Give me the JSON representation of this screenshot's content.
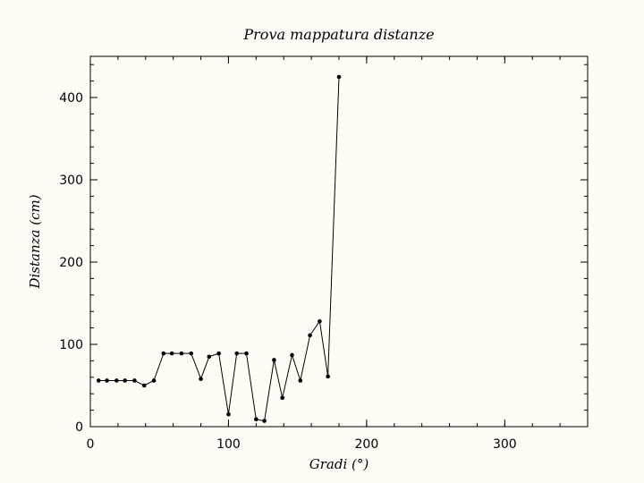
{
  "chart_data": {
    "type": "line",
    "title": "Prova mappatura distanze",
    "xlabel": "Gradi (°)",
    "ylabel": "Distanza (cm)",
    "xlim": [
      0,
      360
    ],
    "ylim": [
      0,
      450
    ],
    "xticks": [
      0,
      100,
      200,
      300
    ],
    "yticks": [
      0,
      100,
      200,
      300,
      400
    ],
    "grid": false,
    "series": [
      {
        "color": "#000000",
        "marker": "dot",
        "x": [
          6,
          12,
          19,
          25,
          32,
          39,
          46,
          53,
          59,
          66,
          73,
          80,
          86,
          93,
          100,
          106,
          113,
          120,
          126,
          133,
          139,
          146,
          152,
          159,
          166,
          172,
          180
        ],
        "y": [
          56,
          56,
          56,
          56,
          56,
          50,
          56,
          89,
          89,
          89,
          89,
          58,
          85,
          89,
          15,
          89,
          89,
          9,
          7,
          81,
          35,
          87,
          56,
          111,
          128,
          61,
          425
        ]
      }
    ]
  }
}
